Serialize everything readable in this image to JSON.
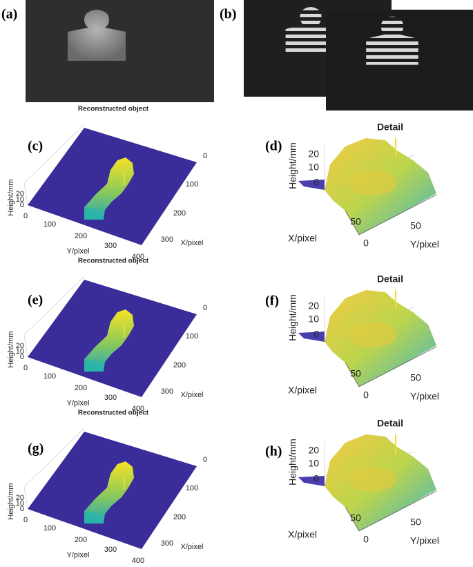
{
  "panels": [
    {
      "type": "photo",
      "label": "(a)"
    },
    {
      "type": "photo-pair",
      "label": "(b)"
    },
    {
      "type": "surface",
      "label": "(c)",
      "title": "Reconstructed object",
      "z_label": "Height/mm",
      "z_ticks": [
        "20",
        "10",
        "0"
      ],
      "x_label": "X/pixel",
      "x_ticks": [
        "0",
        "100",
        "200",
        "300"
      ],
      "y_label": "Y/pixel",
      "y_ticks": [
        "0",
        "100",
        "200",
        "300",
        "400"
      ]
    },
    {
      "type": "detail",
      "label": "(d)",
      "title": "Detail",
      "z_label": "Height/mm",
      "z_ticks": [
        "20",
        "10",
        "0"
      ],
      "x_label": "X/pixel",
      "x_ticks": [
        "50",
        "0"
      ],
      "y_label": "Y/pixel",
      "y_ticks": [
        "50"
      ]
    },
    {
      "type": "surface",
      "label": "(e)",
      "title": "Reconstructed object",
      "z_label": "Height/mm",
      "z_ticks": [
        "20",
        "10",
        "0"
      ],
      "x_label": "X/pixel",
      "x_ticks": [
        "0",
        "100",
        "200",
        "300"
      ],
      "y_label": "Y/pixel",
      "y_ticks": [
        "0",
        "100",
        "200",
        "300",
        "400"
      ]
    },
    {
      "type": "detail",
      "label": "(f)",
      "title": "Detail",
      "z_label": "Height/mm",
      "z_ticks": [
        "20",
        "10",
        "0"
      ],
      "x_label": "X/pixel",
      "x_ticks": [
        "50",
        "0"
      ],
      "y_label": "Y/pixel",
      "y_ticks": [
        "50"
      ]
    },
    {
      "type": "surface",
      "label": "(g)",
      "title": "Reconstructed object",
      "z_label": "Height/mm",
      "z_ticks": [
        "20",
        "10",
        "0"
      ],
      "x_label": "X/pixel",
      "x_ticks": [
        "0",
        "100",
        "200",
        "300"
      ],
      "y_label": "Y/pixel",
      "y_ticks": [
        "0",
        "100",
        "200",
        "300",
        "400"
      ]
    },
    {
      "type": "detail",
      "label": "(h)",
      "title": "Detail",
      "z_label": "Height/mm",
      "z_ticks": [
        "20",
        "10",
        "0"
      ],
      "x_label": "X/pixel",
      "x_ticks": [
        "50",
        "0"
      ],
      "y_label": "Y/pixel",
      "y_ticks": [
        "50"
      ]
    }
  ]
}
